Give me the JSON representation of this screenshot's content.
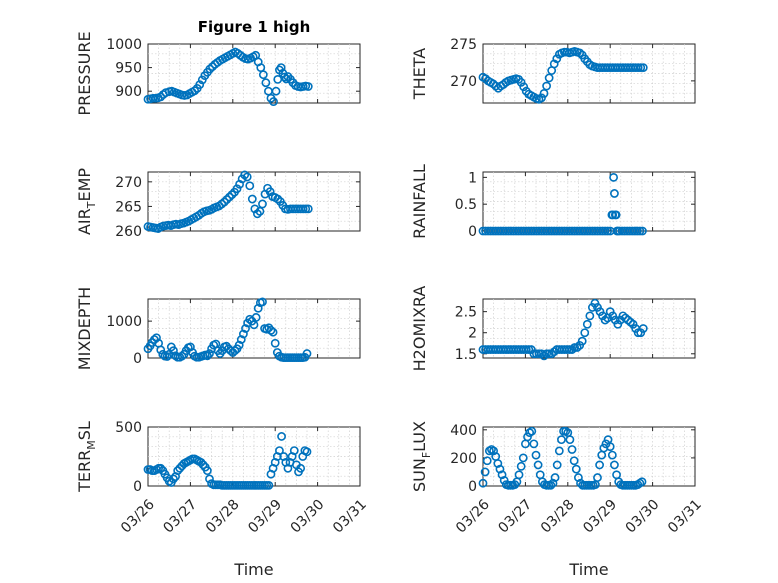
{
  "chart_data": [
    {
      "type": "scatter",
      "title": "Figure 1 high",
      "ylabel": "PRESSURE",
      "ylabel_sub": "",
      "xlabel": "",
      "xlim": [
        0,
        5
      ],
      "ylim": [
        875,
        1000
      ],
      "yticks": [
        900,
        950,
        1000
      ],
      "x_ticklabels": [],
      "color": "#0072BD",
      "x": [
        0.0,
        0.06,
        0.12,
        0.18,
        0.24,
        0.3,
        0.36,
        0.42,
        0.5,
        0.56,
        0.62,
        0.68,
        0.74,
        0.8,
        0.86,
        0.92,
        0.98,
        1.04,
        1.1,
        1.16,
        1.22,
        1.28,
        1.34,
        1.4,
        1.46,
        1.52,
        1.58,
        1.64,
        1.7,
        1.76,
        1.82,
        1.88,
        1.94,
        2.0,
        2.06,
        2.12,
        2.18,
        2.24,
        2.3,
        2.36,
        2.42,
        2.48,
        2.54,
        2.6,
        2.66,
        2.72,
        2.78,
        2.84,
        2.9,
        2.96,
        3.02,
        3.06,
        3.1,
        3.14,
        3.18,
        3.22,
        3.26,
        3.3,
        3.36,
        3.42,
        3.48,
        3.54,
        3.6,
        3.66,
        3.72,
        3.78
      ],
      "y": [
        883,
        884,
        885,
        885,
        886,
        888,
        893,
        897,
        899,
        900,
        898,
        896,
        894,
        892,
        891,
        892,
        895,
        898,
        901,
        906,
        914,
        924,
        933,
        940,
        947,
        952,
        957,
        961,
        965,
        968,
        971,
        974,
        977,
        980,
        983,
        980,
        976,
        972,
        969,
        968,
        970,
        973,
        976,
        962,
        950,
        935,
        918,
        900,
        885,
        878,
        900,
        925,
        945,
        950,
        938,
        930,
        926,
        931,
        925,
        918,
        912,
        910,
        909,
        910,
        911,
        910
      ]
    },
    {
      "type": "scatter",
      "title": "",
      "ylabel": "THETA",
      "ylabel_sub": "",
      "xlabel": "",
      "xlim": [
        0,
        5
      ],
      "ylim": [
        267,
        275
      ],
      "yticks": [
        270,
        275
      ],
      "x_ticklabels": [],
      "color": "#0072BD",
      "x": [
        0.0,
        0.06,
        0.12,
        0.18,
        0.24,
        0.3,
        0.36,
        0.42,
        0.48,
        0.54,
        0.6,
        0.66,
        0.72,
        0.78,
        0.84,
        0.9,
        0.96,
        1.02,
        1.08,
        1.14,
        1.2,
        1.26,
        1.32,
        1.38,
        1.44,
        1.5,
        1.56,
        1.62,
        1.68,
        1.74,
        1.8,
        1.86,
        1.92,
        1.98,
        2.04,
        2.1,
        2.16,
        2.22,
        2.28,
        2.34,
        2.4,
        2.46,
        2.52,
        2.58,
        2.64,
        2.7,
        2.76,
        2.82,
        2.88,
        2.94,
        3.0,
        3.06,
        3.12,
        3.18,
        3.24,
        3.3,
        3.36,
        3.42,
        3.48,
        3.54,
        3.6,
        3.66,
        3.72,
        3.78
      ],
      "y": [
        270.5,
        270.3,
        270.0,
        269.8,
        269.6,
        269.3,
        269.0,
        269.3,
        269.5,
        269.8,
        270.0,
        270.1,
        270.2,
        270.3,
        270.2,
        269.8,
        269.2,
        268.6,
        268.2,
        268.0,
        267.8,
        267.6,
        267.5,
        267.7,
        268.3,
        269.3,
        270.4,
        271.4,
        272.3,
        273.0,
        273.6,
        273.8,
        273.9,
        273.9,
        273.8,
        273.9,
        274.0,
        273.9,
        273.8,
        273.5,
        273.0,
        272.6,
        272.2,
        272.0,
        271.9,
        271.8,
        271.8,
        271.8,
        271.8,
        271.8,
        271.8,
        271.8,
        271.8,
        271.8,
        271.8,
        271.8,
        271.8,
        271.8,
        271.8,
        271.8,
        271.8,
        271.8,
        271.8,
        271.8
      ]
    },
    {
      "type": "scatter",
      "title": "",
      "ylabel": "AIR",
      "ylabel_sub": "T",
      "ylabel_tail": "EMP",
      "xlabel": "",
      "xlim": [
        0,
        5
      ],
      "ylim": [
        260,
        272
      ],
      "yticks": [
        260,
        265,
        270
      ],
      "x_ticklabels": [],
      "color": "#0072BD",
      "x": [
        0.0,
        0.06,
        0.12,
        0.18,
        0.24,
        0.3,
        0.36,
        0.42,
        0.48,
        0.54,
        0.6,
        0.66,
        0.72,
        0.78,
        0.84,
        0.9,
        0.96,
        1.02,
        1.08,
        1.14,
        1.2,
        1.26,
        1.32,
        1.38,
        1.44,
        1.5,
        1.56,
        1.62,
        1.68,
        1.74,
        1.8,
        1.86,
        1.92,
        1.98,
        2.04,
        2.1,
        2.16,
        2.22,
        2.28,
        2.34,
        2.4,
        2.46,
        2.52,
        2.58,
        2.64,
        2.7,
        2.76,
        2.82,
        2.88,
        2.94,
        3.0,
        3.06,
        3.12,
        3.18,
        3.24,
        3.3,
        3.36,
        3.42,
        3.48,
        3.54,
        3.6,
        3.66,
        3.72,
        3.78
      ],
      "y": [
        260.9,
        260.8,
        260.7,
        260.6,
        260.5,
        260.8,
        261.0,
        261.1,
        261.2,
        261.1,
        261.3,
        261.4,
        261.3,
        261.5,
        261.6,
        261.8,
        262.0,
        262.3,
        262.6,
        262.9,
        263.2,
        263.6,
        263.9,
        264.1,
        264.2,
        264.4,
        264.7,
        264.9,
        265.1,
        265.5,
        265.9,
        266.4,
        266.9,
        267.4,
        267.9,
        268.6,
        269.5,
        270.6,
        271.4,
        271.0,
        269.2,
        266.5,
        264.5,
        263.5,
        264.0,
        265.5,
        267.5,
        268.7,
        268.0,
        267.0,
        266.8,
        266.5,
        266.0,
        265.2,
        264.5,
        264.4,
        264.5,
        264.5,
        264.5,
        264.5,
        264.5,
        264.5,
        264.5,
        264.5
      ]
    },
    {
      "type": "scatter",
      "title": "",
      "ylabel": "RAINFALL",
      "ylabel_sub": "",
      "xlabel": "",
      "xlim": [
        0,
        5
      ],
      "ylim": [
        0,
        1.1
      ],
      "yticks": [
        0,
        0.5,
        1
      ],
      "ytick_labels": [
        "0",
        "0.5",
        "1"
      ],
      "x_ticklabels": [],
      "color": "#0072BD",
      "x": [
        0.0,
        0.06,
        0.12,
        0.18,
        0.24,
        0.3,
        0.36,
        0.42,
        0.48,
        0.54,
        0.6,
        0.66,
        0.72,
        0.78,
        0.84,
        0.9,
        0.96,
        1.02,
        1.08,
        1.14,
        1.2,
        1.26,
        1.32,
        1.38,
        1.44,
        1.5,
        1.56,
        1.62,
        1.68,
        1.74,
        1.8,
        1.86,
        1.92,
        1.98,
        2.04,
        2.1,
        2.16,
        2.22,
        2.28,
        2.34,
        2.4,
        2.46,
        2.52,
        2.58,
        2.64,
        2.7,
        2.76,
        2.82,
        2.88,
        2.94,
        3.0,
        3.04,
        3.06,
        3.08,
        3.1,
        3.12,
        3.14,
        3.16,
        3.18,
        3.22,
        3.28,
        3.34,
        3.4,
        3.46,
        3.52,
        3.58,
        3.64,
        3.7,
        3.76
      ],
      "y": [
        0,
        0,
        0,
        0,
        0,
        0,
        0,
        0,
        0,
        0,
        0,
        0,
        0,
        0,
        0,
        0,
        0,
        0,
        0,
        0,
        0,
        0,
        0,
        0,
        0,
        0,
        0,
        0,
        0,
        0,
        0,
        0,
        0,
        0,
        0,
        0,
        0,
        0,
        0,
        0,
        0,
        0,
        0,
        0,
        0,
        0,
        0,
        0,
        0,
        0,
        0,
        0.3,
        0.3,
        1.0,
        0.7,
        0.3,
        0.3,
        0,
        0,
        0,
        0,
        0,
        0,
        0,
        0,
        0,
        0,
        0,
        0
      ]
    },
    {
      "type": "scatter",
      "title": "",
      "ylabel": "MIXDEPTH",
      "ylabel_sub": "",
      "xlabel": "",
      "xlim": [
        0,
        5
      ],
      "ylim": [
        0,
        1600
      ],
      "yticks": [
        0,
        1000
      ],
      "x_ticklabels": [],
      "color": "#0072BD",
      "x": [
        0.0,
        0.05,
        0.1,
        0.15,
        0.2,
        0.25,
        0.3,
        0.35,
        0.4,
        0.45,
        0.5,
        0.55,
        0.6,
        0.65,
        0.7,
        0.75,
        0.8,
        0.85,
        0.9,
        0.95,
        1.0,
        1.05,
        1.1,
        1.15,
        1.2,
        1.25,
        1.3,
        1.35,
        1.4,
        1.45,
        1.5,
        1.55,
        1.6,
        1.65,
        1.7,
        1.75,
        1.8,
        1.85,
        1.9,
        1.95,
        2.0,
        2.05,
        2.1,
        2.15,
        2.2,
        2.25,
        2.3,
        2.35,
        2.4,
        2.45,
        2.5,
        2.55,
        2.6,
        2.65,
        2.7,
        2.75,
        2.8,
        2.85,
        2.9,
        2.95,
        3.0,
        3.05,
        3.1,
        3.15,
        3.2,
        3.25,
        3.3,
        3.35,
        3.4,
        3.45,
        3.5,
        3.55,
        3.6,
        3.65,
        3.7,
        3.75
      ],
      "y": [
        250,
        330,
        420,
        500,
        550,
        400,
        220,
        100,
        50,
        40,
        100,
        300,
        200,
        60,
        20,
        20,
        50,
        100,
        200,
        280,
        300,
        150,
        50,
        20,
        20,
        40,
        60,
        80,
        60,
        120,
        250,
        350,
        380,
        200,
        120,
        200,
        300,
        320,
        250,
        200,
        150,
        200,
        250,
        350,
        500,
        650,
        800,
        950,
        1050,
        1000,
        900,
        1100,
        1350,
        1500,
        1520,
        800,
        780,
        820,
        750,
        700,
        400,
        150,
        50,
        20,
        10,
        10,
        10,
        10,
        10,
        10,
        10,
        10,
        10,
        10,
        20,
        120
      ]
    },
    {
      "type": "scatter",
      "title": "",
      "ylabel": "H2OMIXRA",
      "ylabel_sub": "",
      "xlabel": "",
      "xlim": [
        0,
        5
      ],
      "ylim": [
        1.4,
        2.8
      ],
      "yticks": [
        1.5,
        2,
        2.5
      ],
      "ytick_labels": [
        "1.5",
        "2",
        "2.5"
      ],
      "x_ticklabels": [],
      "color": "#0072BD",
      "x": [
        0.0,
        0.06,
        0.12,
        0.18,
        0.24,
        0.3,
        0.36,
        0.42,
        0.48,
        0.54,
        0.6,
        0.66,
        0.72,
        0.78,
        0.84,
        0.9,
        0.96,
        1.02,
        1.08,
        1.14,
        1.2,
        1.26,
        1.32,
        1.38,
        1.44,
        1.5,
        1.56,
        1.62,
        1.68,
        1.74,
        1.8,
        1.86,
        1.92,
        1.98,
        2.04,
        2.1,
        2.16,
        2.22,
        2.28,
        2.34,
        2.4,
        2.46,
        2.52,
        2.58,
        2.64,
        2.7,
        2.76,
        2.82,
        2.88,
        2.94,
        3.0,
        3.06,
        3.12,
        3.18,
        3.24,
        3.3,
        3.36,
        3.42,
        3.48,
        3.54,
        3.6,
        3.66,
        3.72,
        3.78
      ],
      "y": [
        1.6,
        1.6,
        1.6,
        1.6,
        1.6,
        1.6,
        1.6,
        1.6,
        1.6,
        1.6,
        1.6,
        1.6,
        1.6,
        1.6,
        1.6,
        1.6,
        1.6,
        1.6,
        1.6,
        1.6,
        1.5,
        1.5,
        1.5,
        1.5,
        1.45,
        1.5,
        1.5,
        1.5,
        1.55,
        1.6,
        1.6,
        1.6,
        1.6,
        1.6,
        1.6,
        1.6,
        1.65,
        1.65,
        1.7,
        1.8,
        2.0,
        2.2,
        2.4,
        2.6,
        2.7,
        2.6,
        2.5,
        2.4,
        2.3,
        2.35,
        2.5,
        2.4,
        2.3,
        2.2,
        2.3,
        2.4,
        2.35,
        2.3,
        2.25,
        2.2,
        2.1,
        2.0,
        2.0,
        2.1
      ]
    },
    {
      "type": "scatter",
      "title": "",
      "ylabel": "TERR",
      "ylabel_sub": "M",
      "ylabel_tail": "SL",
      "xlabel": "Time",
      "xlim": [
        0,
        5
      ],
      "ylim": [
        0,
        500
      ],
      "yticks": [
        0,
        500
      ],
      "x_ticks": [
        0,
        1,
        2,
        3,
        4,
        5
      ],
      "x_ticklabels": [
        "03/26",
        "03/27",
        "03/28",
        "03/29",
        "03/30",
        "03/31"
      ],
      "color": "#0072BD",
      "x": [
        0.0,
        0.05,
        0.1,
        0.15,
        0.2,
        0.25,
        0.3,
        0.35,
        0.4,
        0.45,
        0.5,
        0.55,
        0.6,
        0.65,
        0.7,
        0.75,
        0.8,
        0.85,
        0.9,
        0.95,
        1.0,
        1.05,
        1.1,
        1.15,
        1.2,
        1.25,
        1.3,
        1.35,
        1.4,
        1.45,
        1.5,
        1.55,
        1.6,
        1.65,
        1.7,
        1.75,
        1.8,
        1.85,
        1.9,
        1.95,
        2.0,
        2.05,
        2.1,
        2.15,
        2.2,
        2.25,
        2.3,
        2.35,
        2.4,
        2.45,
        2.5,
        2.55,
        2.6,
        2.65,
        2.7,
        2.75,
        2.8,
        2.85,
        2.9,
        2.95,
        3.0,
        3.05,
        3.1,
        3.15,
        3.2,
        3.25,
        3.3,
        3.35,
        3.4,
        3.45,
        3.5,
        3.55,
        3.6,
        3.65,
        3.7,
        3.75
      ],
      "y": [
        140,
        140,
        130,
        130,
        140,
        150,
        150,
        130,
        100,
        70,
        40,
        30,
        60,
        80,
        130,
        150,
        170,
        190,
        200,
        210,
        220,
        230,
        230,
        220,
        210,
        200,
        180,
        160,
        130,
        60,
        20,
        10,
        10,
        10,
        10,
        5,
        5,
        5,
        5,
        5,
        5,
        5,
        5,
        5,
        5,
        5,
        5,
        5,
        5,
        5,
        5,
        5,
        5,
        5,
        5,
        5,
        5,
        5,
        100,
        150,
        200,
        250,
        300,
        420,
        250,
        200,
        150,
        200,
        250,
        300,
        180,
        120,
        150,
        250,
        300,
        290
      ]
    },
    {
      "type": "scatter",
      "title": "",
      "ylabel": "SUN",
      "ylabel_sub": "F",
      "ylabel_tail": "LUX",
      "xlabel": "Time",
      "xlim": [
        0,
        5
      ],
      "ylim": [
        0,
        420
      ],
      "yticks": [
        0,
        200,
        400
      ],
      "x_ticks": [
        0,
        1,
        2,
        3,
        4,
        5
      ],
      "x_ticklabels": [
        "03/26",
        "03/27",
        "03/28",
        "03/29",
        "03/30",
        "03/31"
      ],
      "color": "#0072BD",
      "x": [
        0.0,
        0.05,
        0.1,
        0.15,
        0.2,
        0.25,
        0.3,
        0.35,
        0.4,
        0.45,
        0.5,
        0.55,
        0.6,
        0.65,
        0.7,
        0.75,
        0.8,
        0.85,
        0.9,
        0.95,
        1.0,
        1.05,
        1.1,
        1.15,
        1.2,
        1.25,
        1.3,
        1.35,
        1.4,
        1.45,
        1.5,
        1.55,
        1.6,
        1.65,
        1.7,
        1.75,
        1.8,
        1.85,
        1.9,
        1.95,
        2.0,
        2.05,
        2.1,
        2.15,
        2.2,
        2.25,
        2.3,
        2.35,
        2.4,
        2.45,
        2.5,
        2.55,
        2.6,
        2.65,
        2.7,
        2.75,
        2.8,
        2.85,
        2.9,
        2.95,
        3.0,
        3.05,
        3.1,
        3.15,
        3.2,
        3.25,
        3.3,
        3.35,
        3.4,
        3.45,
        3.5,
        3.55,
        3.6,
        3.65,
        3.7,
        3.75
      ],
      "y": [
        20,
        100,
        180,
        250,
        260,
        250,
        210,
        160,
        120,
        80,
        40,
        10,
        5,
        5,
        5,
        10,
        30,
        80,
        140,
        200,
        300,
        350,
        380,
        390,
        300,
        220,
        150,
        80,
        30,
        10,
        5,
        5,
        5,
        20,
        60,
        150,
        250,
        330,
        390,
        390,
        380,
        330,
        260,
        180,
        120,
        60,
        20,
        5,
        5,
        5,
        5,
        5,
        5,
        10,
        60,
        150,
        220,
        270,
        300,
        330,
        280,
        220,
        150,
        80,
        30,
        10,
        5,
        5,
        5,
        5,
        5,
        5,
        5,
        10,
        20,
        30
      ]
    }
  ]
}
